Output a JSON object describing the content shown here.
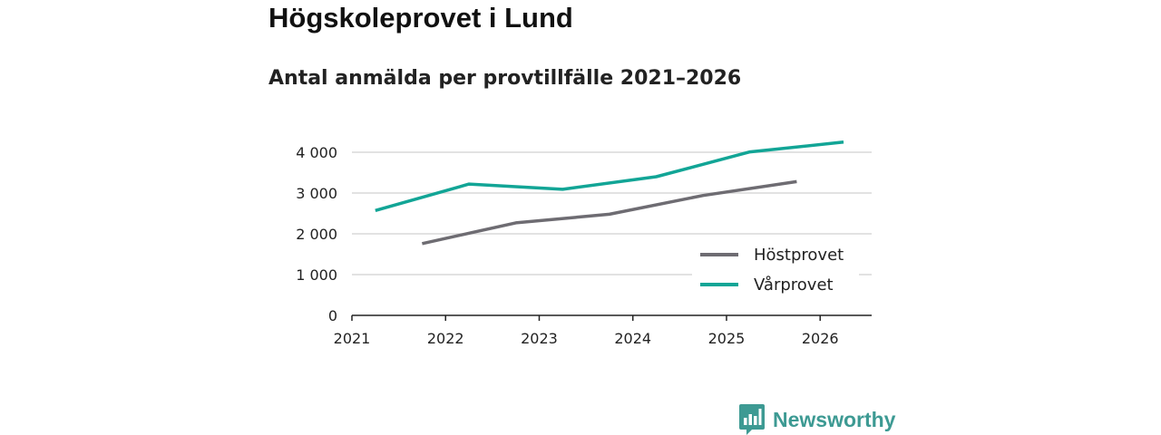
{
  "header": {
    "title": "Högskoleprovet i Lund",
    "subtitle": "Antal anmälda per provtillfälle 2021–2026"
  },
  "brand": {
    "name": "Newsworthy",
    "logo_icon": "newsworthy-bar-chart-icon"
  },
  "colors": {
    "hostprovet": "#6e6c72",
    "varprovet": "#12a596",
    "grid": "#d9d9d9",
    "axis": "#222222",
    "brand": "#3d9a93"
  },
  "chart_data": {
    "type": "line",
    "title": "Högskoleprovet i Lund",
    "subtitle": "Antal anmälda per provtillfälle 2021–2026",
    "xlabel": "",
    "ylabel": "",
    "xlim": [
      2021,
      2026.55
    ],
    "ylim": [
      0,
      4400
    ],
    "x_ticks": [
      2021,
      2022,
      2023,
      2024,
      2025,
      2026
    ],
    "x_tick_labels": [
      "2021",
      "2022",
      "2023",
      "2024",
      "2025",
      "2026"
    ],
    "y_ticks": [
      0,
      1000,
      2000,
      3000,
      4000
    ],
    "y_tick_labels": [
      "0",
      "1 000",
      "2 000",
      "3 000",
      "4 000"
    ],
    "grid": true,
    "legend_position": "bottom-right",
    "series": [
      {
        "name": "Höstprovet",
        "color": "#6e6c72",
        "points": [
          {
            "x": 2021.75,
            "y": 1760
          },
          {
            "x": 2022.75,
            "y": 2270
          },
          {
            "x": 2023.75,
            "y": 2480
          },
          {
            "x": 2024.75,
            "y": 2940
          },
          {
            "x": 2025.75,
            "y": 3280
          }
        ]
      },
      {
        "name": "Vårprovet",
        "color": "#12a596",
        "points": [
          {
            "x": 2021.25,
            "y": 2570
          },
          {
            "x": 2022.25,
            "y": 3220
          },
          {
            "x": 2023.25,
            "y": 3090
          },
          {
            "x": 2024.25,
            "y": 3400
          },
          {
            "x": 2025.25,
            "y": 4010
          },
          {
            "x": 2026.25,
            "y": 4250
          }
        ]
      }
    ]
  }
}
